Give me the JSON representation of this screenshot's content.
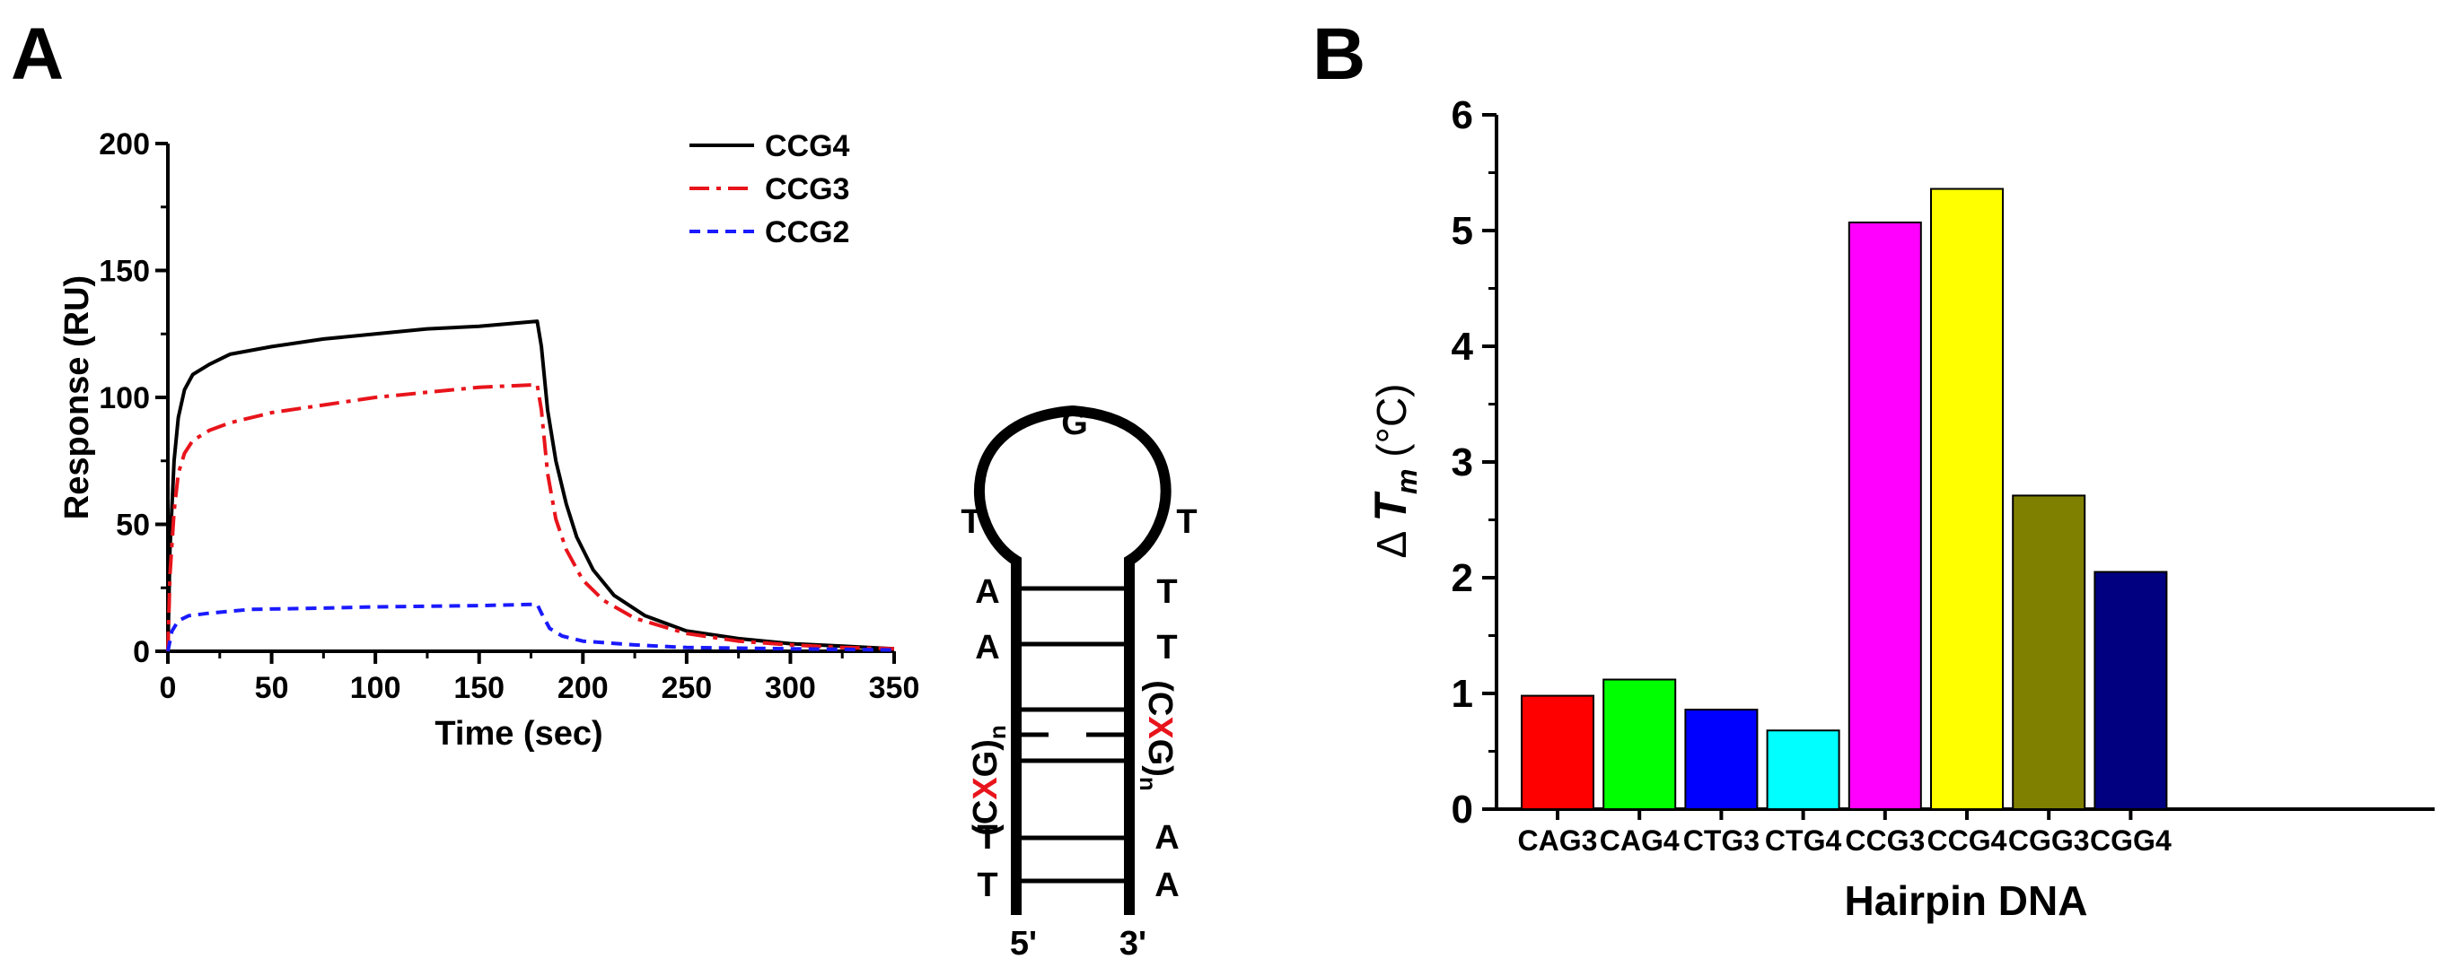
{
  "panel_a": {
    "label": "A"
  },
  "panel_b": {
    "label": "B"
  },
  "chart_data": [
    {
      "type": "line",
      "xlabel": "Time (sec)",
      "ylabel": "Response (RU)",
      "xlim": [
        0,
        350
      ],
      "ylim": [
        0,
        200
      ],
      "xticks": [
        0,
        50,
        100,
        150,
        200,
        250,
        300,
        350
      ],
      "yticks": [
        0,
        50,
        100,
        150,
        200
      ],
      "legend_position": "top-right",
      "series": [
        {
          "name": "CCG4",
          "color": "#000000",
          "dash": "solid",
          "points": [
            [
              0,
              0
            ],
            [
              1,
              40
            ],
            [
              3,
              75
            ],
            [
              5,
              92
            ],
            [
              8,
              103
            ],
            [
              12,
              109
            ],
            [
              20,
              113
            ],
            [
              30,
              117
            ],
            [
              50,
              120
            ],
            [
              75,
              123
            ],
            [
              100,
              125
            ],
            [
              125,
              127
            ],
            [
              150,
              128
            ],
            [
              178,
              130
            ],
            [
              180,
              120
            ],
            [
              183,
              95
            ],
            [
              187,
              75
            ],
            [
              192,
              58
            ],
            [
              197,
              45
            ],
            [
              205,
              32
            ],
            [
              215,
              22
            ],
            [
              230,
              14
            ],
            [
              250,
              8
            ],
            [
              275,
              5
            ],
            [
              300,
              3
            ],
            [
              325,
              2
            ],
            [
              350,
              1
            ]
          ]
        },
        {
          "name": "CCG3",
          "color": "#e8141b",
          "dash": "dashdot",
          "points": [
            [
              0,
              0
            ],
            [
              1,
              30
            ],
            [
              3,
              55
            ],
            [
              5,
              70
            ],
            [
              8,
              78
            ],
            [
              12,
              83
            ],
            [
              20,
              87
            ],
            [
              30,
              90
            ],
            [
              50,
              94
            ],
            [
              75,
              97
            ],
            [
              100,
              100
            ],
            [
              125,
              102
            ],
            [
              150,
              104
            ],
            [
              178,
              105
            ],
            [
              180,
              95
            ],
            [
              183,
              70
            ],
            [
              187,
              52
            ],
            [
              192,
              40
            ],
            [
              200,
              28
            ],
            [
              210,
              20
            ],
            [
              225,
              13
            ],
            [
              250,
              7
            ],
            [
              275,
              4
            ],
            [
              300,
              2.5
            ],
            [
              325,
              1.5
            ],
            [
              350,
              1
            ]
          ]
        },
        {
          "name": "CCG2",
          "color": "#1a1aff",
          "dash": "dashed",
          "points": [
            [
              0,
              0
            ],
            [
              2,
              8
            ],
            [
              5,
              12
            ],
            [
              10,
              14
            ],
            [
              20,
              15
            ],
            [
              40,
              16.5
            ],
            [
              75,
              17
            ],
            [
              100,
              17.5
            ],
            [
              150,
              18
            ],
            [
              178,
              18.5
            ],
            [
              180,
              15
            ],
            [
              184,
              9
            ],
            [
              190,
              6
            ],
            [
              200,
              4
            ],
            [
              225,
              2.5
            ],
            [
              250,
              1.5
            ],
            [
              300,
              1
            ],
            [
              350,
              0.5
            ]
          ]
        }
      ]
    },
    {
      "type": "bar",
      "xlabel": "Hairpin DNA",
      "ylabel": "Δ T_m (°C)",
      "ylim": [
        0,
        6
      ],
      "yticks": [
        0,
        1,
        2,
        3,
        4,
        5,
        6
      ],
      "categories": [
        "CAG3",
        "CAG4",
        "CTG3",
        "CTG4",
        "CCG3",
        "CCG4",
        "CGG3",
        "CGG4"
      ],
      "values": [
        0.98,
        1.12,
        0.86,
        0.68,
        5.07,
        5.36,
        2.71,
        2.05
      ],
      "colors": [
        "#ff0000",
        "#00ff00",
        "#0000ff",
        "#00ffff",
        "#ff00ff",
        "#ffff00",
        "#808000",
        "#000080"
      ]
    }
  ],
  "hairpin": {
    "loop_top": "G",
    "loop_left": "T",
    "loop_right": "T",
    "left_bases": [
      "A",
      "A",
      "T",
      "T"
    ],
    "right_bases": [
      "T",
      "T",
      "A",
      "A"
    ],
    "repeat_left": {
      "open": "(C",
      "x": "X",
      "close": "G)",
      "sub": "n"
    },
    "repeat_right": {
      "open": "(C",
      "x": "X",
      "close": "G)",
      "sub": "n"
    },
    "x_color": "#e8141b",
    "end_left": "5'",
    "end_right": "3'"
  }
}
